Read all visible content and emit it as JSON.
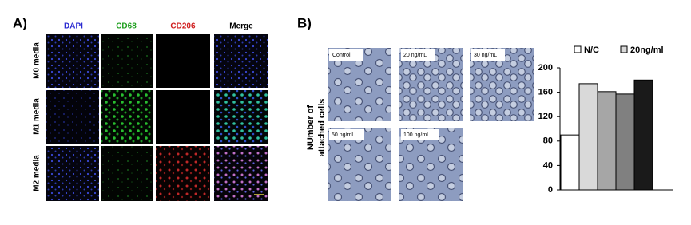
{
  "panel_a": {
    "label": "A)",
    "columns": [
      "DAPI",
      "CD68",
      "CD206",
      "Merge"
    ],
    "rows": [
      "M0 media",
      "M1 media",
      "M2 media"
    ]
  },
  "panel_b": {
    "label": "B)",
    "y_label": [
      "NUmber of",
      "attached cells"
    ],
    "images": [
      "Control",
      "20 ng/mL",
      "30 ng/mL",
      "50 ng/mL",
      "100 ng/mL"
    ]
  },
  "chart_data": {
    "type": "bar",
    "categories": [
      null,
      null,
      null,
      null,
      null
    ],
    "values": [
      90,
      174,
      161,
      157,
      180
    ],
    "colors": [
      "#ffffff",
      "#d9d9d9",
      "#a6a6a6",
      "#808080",
      "#1a1a1a"
    ],
    "legend": [
      {
        "name": "N/C",
        "color": "#ffffff"
      },
      {
        "name": "20ng/ml",
        "color": "#d9d9d9"
      }
    ],
    "ylim": [
      0,
      200
    ],
    "yticks": [
      0,
      40,
      80,
      120,
      160,
      200
    ]
  }
}
